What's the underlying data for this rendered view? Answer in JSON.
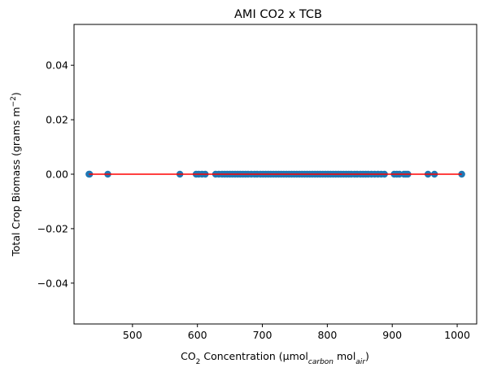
{
  "chart_data": {
    "type": "scatter",
    "title": "AMI CO2 x TCB",
    "xlabel": {
      "prefix": "CO",
      "prefix_sub": "2",
      "mid": " Concentration (µmol",
      "sub1": "carbon",
      "mid2": " mol",
      "sub2": "air",
      "suffix": ")"
    },
    "ylabel": {
      "text": "Total Crop Biomass (grams m",
      "sup": "−2",
      "suffix": ")"
    },
    "xlim": [
      410,
      1030
    ],
    "ylim": [
      -0.055,
      0.055
    ],
    "xticks": [
      500,
      600,
      700,
      800,
      900,
      1000
    ],
    "xtick_labels": [
      "500",
      "600",
      "700",
      "800",
      "900",
      "1000"
    ],
    "yticks": [
      -0.04,
      -0.02,
      0.0,
      0.02,
      0.04
    ],
    "ytick_labels": [
      "−0.04",
      "−0.02",
      "0.00",
      "0.02",
      "0.04"
    ],
    "grid": false,
    "point_color": "#1f77b4",
    "line_color": "#ff0000",
    "points_x": [
      433,
      434,
      462,
      573,
      598,
      602,
      607,
      612,
      628,
      633,
      638,
      642,
      646,
      650,
      654,
      658,
      662,
      666,
      670,
      674,
      678,
      683,
      688,
      692,
      697,
      701,
      705,
      709,
      713,
      717,
      721,
      725,
      729,
      733,
      737,
      741,
      745,
      749,
      753,
      757,
      761,
      765,
      769,
      773,
      777,
      781,
      785,
      789,
      793,
      797,
      801,
      805,
      809,
      813,
      817,
      821,
      825,
      829,
      833,
      837,
      842,
      846,
      851,
      855,
      859,
      863,
      868,
      873,
      878,
      883,
      888,
      903,
      907,
      911,
      918,
      921,
      924,
      955,
      965,
      1007
    ],
    "points_y": [
      0,
      0,
      0,
      0,
      0,
      0,
      0,
      0,
      0,
      0,
      0,
      0,
      0,
      0,
      0,
      0,
      0,
      0,
      0,
      0,
      0,
      0,
      0,
      0,
      0,
      0,
      0,
      0,
      0,
      0,
      0,
      0,
      0,
      0,
      0,
      0,
      0,
      0,
      0,
      0,
      0,
      0,
      0,
      0,
      0,
      0,
      0,
      0,
      0,
      0,
      0,
      0,
      0,
      0,
      0,
      0,
      0,
      0,
      0,
      0,
      0,
      0,
      0,
      0,
      0,
      0,
      0,
      0,
      0,
      0,
      0,
      0,
      0,
      0,
      0,
      0,
      0,
      0,
      0,
      0
    ],
    "fit_line": {
      "x": [
        433,
        1007
      ],
      "y": [
        0,
        0
      ]
    }
  }
}
